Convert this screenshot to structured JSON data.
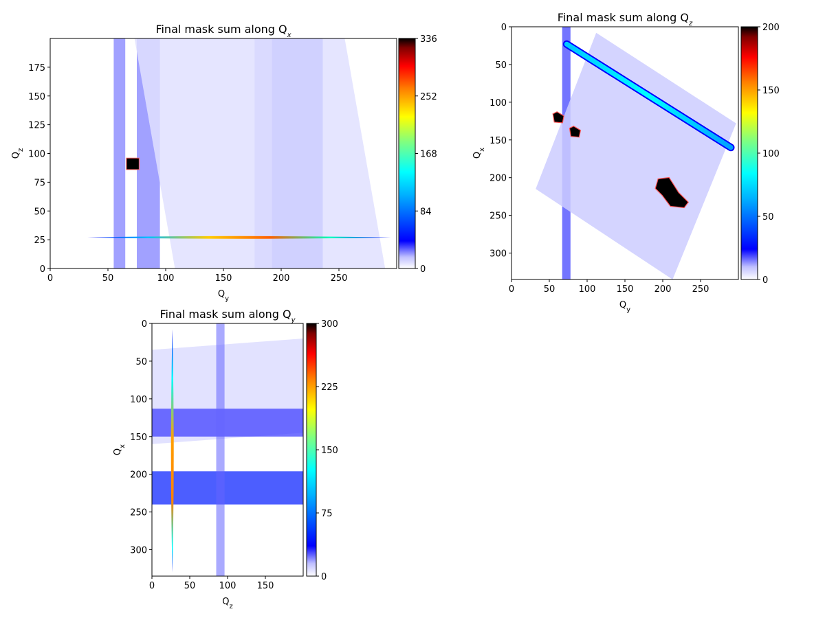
{
  "figure": {
    "background": "#ffffff"
  },
  "chart_data": [
    {
      "type": "heatmap",
      "title": "Final mask sum along Q",
      "title_subscript": "x",
      "xlabel": "Q",
      "xlabel_subscript": "y",
      "ylabel": "Q",
      "ylabel_subscript": "z",
      "xlim": [
        0,
        300
      ],
      "ylim": [
        0,
        200
      ],
      "y_inverted": false,
      "xticks": [
        0,
        50,
        100,
        150,
        200,
        250
      ],
      "yticks": [
        0,
        25,
        50,
        75,
        100,
        125,
        150,
        175
      ],
      "colorbar": {
        "min": 0,
        "max": 336,
        "ticks": [
          0,
          84,
          168,
          252,
          336
        ],
        "colormap": "jet-white"
      },
      "features": [
        {
          "kind": "vertical_band",
          "from": 55,
          "to": 65,
          "value": 30
        },
        {
          "kind": "vertical_band",
          "from": 75,
          "to": 95,
          "value": 30
        },
        {
          "kind": "vertical_band",
          "from": 177,
          "to": 192,
          "value": 25
        },
        {
          "kind": "vertical_band",
          "from": 192,
          "to": 236,
          "value": 45
        },
        {
          "kind": "tilted_region",
          "corners": [
            [
              73,
              200
            ],
            [
              255,
              200
            ],
            [
              290,
              0
            ],
            [
              108,
              0
            ]
          ],
          "value": 8
        },
        {
          "kind": "square",
          "x": 66,
          "y": 86,
          "width": 11,
          "height": 10,
          "value": 336
        },
        {
          "kind": "horizontal_streak",
          "y": 27,
          "from": 32,
          "to": 295,
          "peak_value": 300
        }
      ]
    },
    {
      "type": "heatmap",
      "title": "Final mask sum along Q",
      "title_subscript": "z",
      "xlabel": "Q",
      "xlabel_subscript": "y",
      "ylabel": "Q",
      "ylabel_subscript": "x",
      "xlim": [
        0,
        300
      ],
      "ylim": [
        0,
        335
      ],
      "y_inverted": true,
      "xticks": [
        0,
        50,
        100,
        150,
        200,
        250
      ],
      "yticks": [
        0,
        50,
        100,
        150,
        200,
        250,
        300
      ],
      "colorbar": {
        "min": 0,
        "max": 200,
        "ticks": [
          0,
          50,
          100,
          150,
          200
        ],
        "colormap": "jet-white"
      },
      "features": [
        {
          "kind": "vertical_band",
          "from": 67,
          "to": 78,
          "value": 25
        },
        {
          "kind": "tilted_region",
          "corners": [
            [
              112,
              8
            ],
            [
              297,
              128
            ],
            [
              213,
              335
            ],
            [
              32,
              215
            ]
          ],
          "value": 8
        },
        {
          "kind": "diagonal_streak",
          "from": [
            73,
            23
          ],
          "to": [
            290,
            160
          ],
          "peak_value": 80
        },
        {
          "kind": "blob",
          "x": 62,
          "y": 120,
          "value": 200
        },
        {
          "kind": "blob",
          "x": 84,
          "y": 139,
          "value": 200
        },
        {
          "kind": "blob",
          "x": 212,
          "y": 218,
          "value": 200
        }
      ]
    },
    {
      "type": "heatmap",
      "title": "Final mask sum along Q",
      "title_subscript": "y",
      "xlabel": "Q",
      "xlabel_subscript": "z",
      "ylabel": "Q",
      "ylabel_subscript": "x",
      "xlim": [
        0,
        200
      ],
      "ylim": [
        0,
        335
      ],
      "y_inverted": true,
      "xticks": [
        0,
        50,
        100,
        150
      ],
      "yticks": [
        0,
        50,
        100,
        150,
        200,
        250,
        300
      ],
      "colorbar": {
        "min": 0,
        "max": 300,
        "ticks": [
          0,
          75,
          150,
          225,
          300
        ],
        "colormap": "jet-white"
      },
      "features": [
        {
          "kind": "tilted_region",
          "corners": [
            [
              0,
              35
            ],
            [
              200,
              20
            ],
            [
              200,
              145
            ],
            [
              0,
              160
            ]
          ],
          "value": 8
        },
        {
          "kind": "horizontal_band",
          "from": 113,
          "to": 150,
          "value": 30
        },
        {
          "kind": "horizontal_band",
          "from": 196,
          "to": 240,
          "value": 45
        },
        {
          "kind": "vertical_band",
          "from": 85,
          "to": 96,
          "value": 25
        },
        {
          "kind": "vertical_streak",
          "x": 27,
          "from": 8,
          "to": 330,
          "peak_value": 300
        }
      ]
    }
  ]
}
